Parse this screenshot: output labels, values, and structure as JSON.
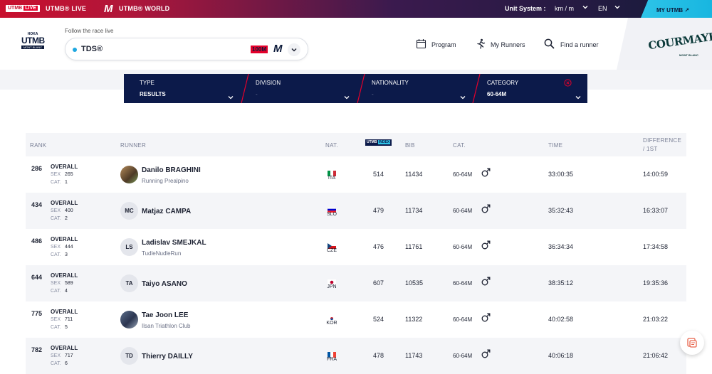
{
  "topbar": {
    "utmb_live_badge": "UTMB",
    "utmb_live_badge_tag": "LIVE",
    "utmb_live": "UTMB® LIVE",
    "utmb_world": "UTMB® WORLD",
    "unit_system_label": "Unit System :",
    "unit_system_value": "km / m",
    "language": "EN",
    "my_utmb": "MY UTMB"
  },
  "header": {
    "logo_top": "HOKA",
    "logo_main": "UTMB",
    "logo_sub": "MONT-BLANC",
    "follow_label": "Follow the race live",
    "race_name": "TDS®",
    "race_badge": "100M",
    "race_badge_m": "M",
    "nav": {
      "program": "Program",
      "my_runners": "My Runners",
      "find_runner": "Find a runner"
    },
    "partner_name": "COURMAYEUR",
    "partner_sub": "MONT BLANC"
  },
  "filters": [
    {
      "label": "TYPE",
      "value": "RESULTS",
      "placeholder": false
    },
    {
      "label": "DIVISION",
      "value": "-",
      "placeholder": true
    },
    {
      "label": "NATIONALITY",
      "value": "-",
      "placeholder": true
    },
    {
      "label": "CATEGORY",
      "value": "60-64M",
      "placeholder": false
    }
  ],
  "table": {
    "headers": {
      "rank": "RANK",
      "runner": "RUNNER",
      "nat": "NAT.",
      "index_a": "UTMB",
      "index_b": "INDEX",
      "bib": "BIB",
      "cat": "CAT.",
      "time": "TIME",
      "diff_1": "DIFFERENCE",
      "diff_2": "/ 1ST"
    },
    "labels": {
      "overall": "OVERALL",
      "sex": "SEX",
      "cat": "CAT."
    },
    "rows": [
      {
        "rank": "286",
        "sex": "265",
        "cat_rank": "1",
        "initials": "",
        "photo": true,
        "name": "Danilo BRAGHINI",
        "club": "Running Prealpino",
        "nat": "ITA",
        "flag": [
          "#009246",
          "#ffffff",
          "#ce2b37"
        ],
        "flag_dir": "v",
        "index": "514",
        "bib": "11434",
        "category": "60-64M",
        "time": "33:00:35",
        "diff": "14:00:59"
      },
      {
        "rank": "434",
        "sex": "400",
        "cat_rank": "2",
        "initials": "MC",
        "photo": false,
        "name": "Matjaz CAMPA",
        "club": "",
        "nat": "SLO",
        "flag": [
          "#ffffff",
          "#0000cc",
          "#ee1c25"
        ],
        "flag_dir": "h",
        "index": "479",
        "bib": "11734",
        "category": "60-64M",
        "time": "35:32:43",
        "diff": "16:33:07"
      },
      {
        "rank": "486",
        "sex": "444",
        "cat_rank": "3",
        "initials": "LS",
        "photo": false,
        "name": "Ladislav SMEJKAL",
        "club": "TudleNudleRun",
        "nat": "CZE",
        "flag": [
          "#ffffff",
          "#d7141a",
          "#11457e"
        ],
        "flag_dir": "cz",
        "index": "476",
        "bib": "11761",
        "category": "60-64M",
        "time": "36:34:34",
        "diff": "17:34:58"
      },
      {
        "rank": "644",
        "sex": "589",
        "cat_rank": "4",
        "initials": "TA",
        "photo": false,
        "name": "Taiyo ASANO",
        "club": "",
        "nat": "JPN",
        "flag": [
          "#ffffff",
          "#bc002d",
          "#ffffff"
        ],
        "flag_dir": "jp",
        "index": "607",
        "bib": "10535",
        "category": "60-64M",
        "time": "38:35:12",
        "diff": "19:35:36"
      },
      {
        "rank": "775",
        "sex": "711",
        "cat_rank": "5",
        "initials": "",
        "photo": true,
        "name": "Tae Joon LEE",
        "club": "Ilsan Triathlon Club",
        "nat": "KOR",
        "flag": [
          "#ffffff",
          "#cd2e3a",
          "#0047a0"
        ],
        "flag_dir": "kr",
        "index": "524",
        "bib": "11322",
        "category": "60-64M",
        "time": "40:02:58",
        "diff": "21:03:22"
      },
      {
        "rank": "782",
        "sex": "717",
        "cat_rank": "6",
        "initials": "TD",
        "photo": false,
        "name": "Thierry DAILLY",
        "club": "",
        "nat": "FRA",
        "flag": [
          "#0055a4",
          "#ffffff",
          "#ef4135"
        ],
        "flag_dir": "v",
        "index": "478",
        "bib": "11743",
        "category": "60-64M",
        "time": "40:06:18",
        "diff": "21:06:42"
      }
    ]
  },
  "icons": {
    "program": "calendar-icon",
    "my_runners": "runner-icon",
    "find_runner": "search-icon",
    "fab": "feedback-icon"
  }
}
